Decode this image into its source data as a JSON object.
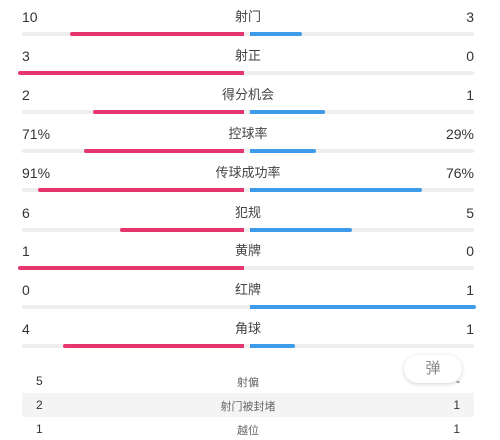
{
  "colors": {
    "home": "#e5366d",
    "away": "#3d9be9"
  },
  "stats": [
    {
      "label": "射门",
      "home": "10",
      "away": "3",
      "home_share": 0.77,
      "away_share": 0.23
    },
    {
      "label": "射正",
      "home": "3",
      "away": "0",
      "home_share": 1.0,
      "away_share": 0.0
    },
    {
      "label": "得分机会",
      "home": "2",
      "away": "1",
      "home_share": 0.67,
      "away_share": 0.33
    },
    {
      "label": "控球率",
      "home": "71%",
      "away": "29%",
      "home_share": 0.71,
      "away_share": 0.29
    },
    {
      "label": "传球成功率",
      "home": "91%",
      "away": "76%",
      "home_share": 0.91,
      "away_share": 0.76,
      "independent": true
    },
    {
      "label": "犯规",
      "home": "6",
      "away": "5",
      "home_share": 0.55,
      "away_share": 0.45
    },
    {
      "label": "黄牌",
      "home": "1",
      "away": "0",
      "home_share": 1.0,
      "away_share": 0.0
    },
    {
      "label": "红牌",
      "home": "0",
      "away": "1",
      "home_share": 0.0,
      "away_share": 1.0
    },
    {
      "label": "角球",
      "home": "4",
      "away": "1",
      "home_share": 0.8,
      "away_share": 0.2
    }
  ],
  "extra_stats": [
    {
      "label": "射偏",
      "home": "5",
      "away": "-"
    },
    {
      "label": "射门被封堵",
      "home": "2",
      "away": "1"
    },
    {
      "label": "越位",
      "home": "1",
      "away": "1"
    }
  ],
  "danmu_button": {
    "label": "弹"
  }
}
